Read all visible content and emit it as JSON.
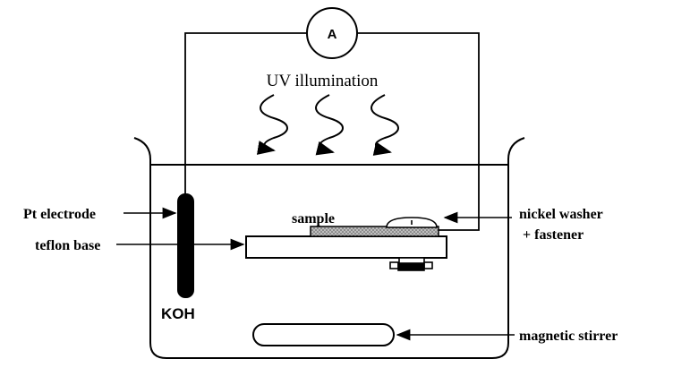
{
  "diagram": {
    "ammeter_label": "A",
    "uv_label": "UV illumination",
    "pt_electrode_label": "Pt electrode",
    "teflon_base_label": "teflon base",
    "sample_label": "sample",
    "nickel_washer_line1": "nickel washer",
    "nickel_washer_line2": "+ fastener",
    "koh_label": "KOH",
    "magnetic_stirrer_label": "magnetic stirrer"
  },
  "colors": {
    "ink": "#000000",
    "background": "#ffffff",
    "sample_fill": "#9a9a9a"
  }
}
